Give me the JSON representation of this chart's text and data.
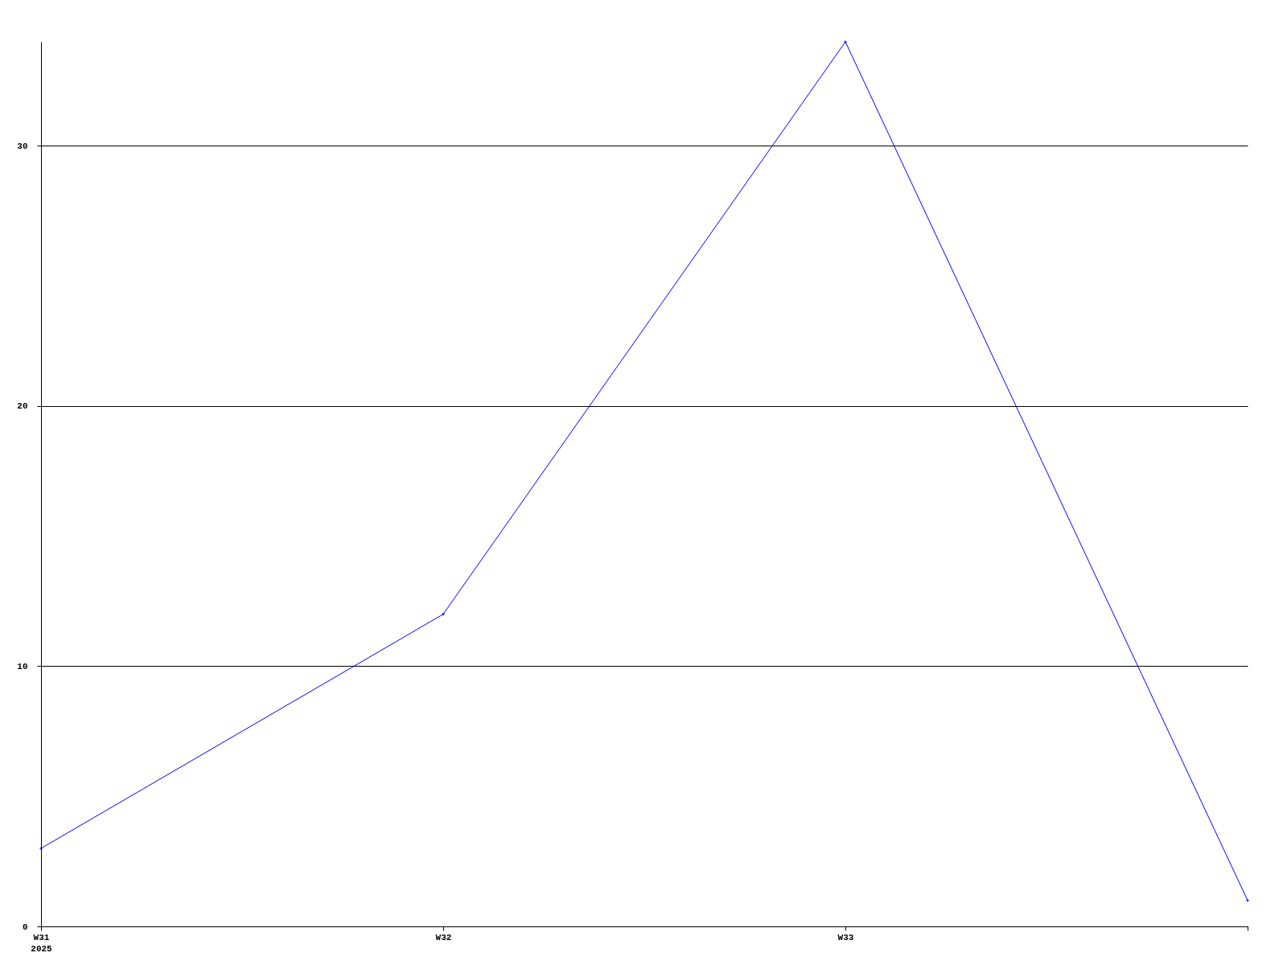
{
  "chart_data": {
    "type": "line",
    "categories": [
      "W31\n2025",
      "W32",
      "W33",
      null
    ],
    "series": [
      {
        "color": "#0000ff",
        "values": [
          3,
          12,
          34,
          1
        ]
      }
    ],
    "ylim": [
      0,
      34
    ],
    "yticks": [
      0,
      10,
      20,
      30
    ],
    "grid": "y",
    "marker": "diamond",
    "line_style": "solid",
    "legend": false
  }
}
